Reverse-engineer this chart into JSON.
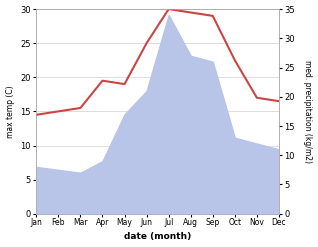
{
  "months": [
    "Jan",
    "Feb",
    "Mar",
    "Apr",
    "May",
    "Jun",
    "Jul",
    "Aug",
    "Sep",
    "Oct",
    "Nov",
    "Dec"
  ],
  "temperature": [
    14.5,
    15.0,
    15.5,
    19.5,
    19.0,
    25.0,
    30.0,
    29.5,
    29.0,
    22.5,
    17.0,
    16.5
  ],
  "precipitation": [
    8.0,
    7.5,
    7.0,
    9.0,
    17.0,
    21.0,
    34.0,
    27.0,
    26.0,
    13.0,
    12.0,
    11.0
  ],
  "temp_color": "#cc4444",
  "precip_color": "#b8c4e8",
  "temp_ylim": [
    0,
    30
  ],
  "precip_ylim": [
    0,
    35
  ],
  "temp_yticks": [
    0,
    5,
    10,
    15,
    20,
    25,
    30
  ],
  "precip_yticks": [
    0,
    5,
    10,
    15,
    20,
    25,
    30,
    35
  ],
  "ylabel_left": "max temp (C)",
  "ylabel_right": "med. precipitation (kg/m2)",
  "xlabel": "date (month)",
  "background_color": "#ffffff",
  "grid_color": "#d0d0d0"
}
